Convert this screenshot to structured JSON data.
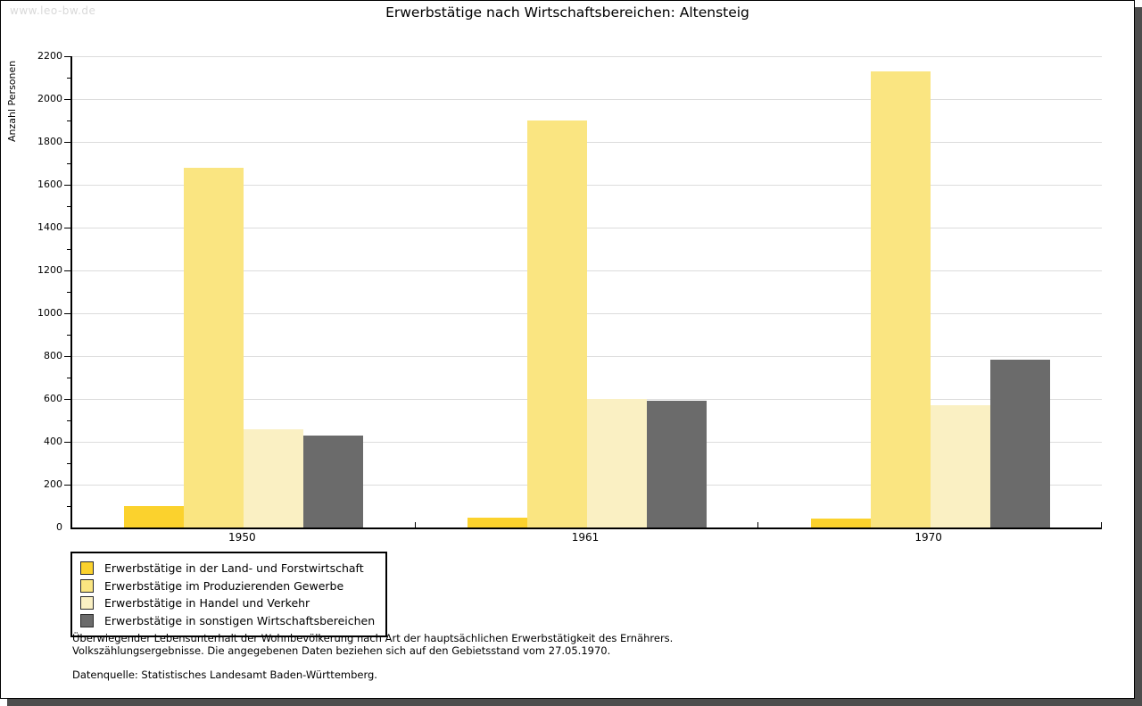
{
  "watermark": "www.leo-bw.de",
  "chart_data": {
    "type": "bar",
    "title": "Erwerbstätige nach Wirtschaftsbereichen: Altensteig",
    "ylabel": "Anzahl Personen",
    "xlabel": "",
    "ylim": [
      0,
      2200
    ],
    "ytick_step": 200,
    "ytick_minor_step": 100,
    "grid": true,
    "legend_position": "bottom-left",
    "categories": [
      "1950",
      "1961",
      "1970"
    ],
    "series": [
      {
        "name": "Erwerbstätige in der Land- und Forstwirtschaft",
        "color": "#fbd22d",
        "values": [
          100,
          45,
          40
        ]
      },
      {
        "name": "Erwerbstätige im Produzierenden Gewerbe",
        "color": "#fae581",
        "values": [
          1680,
          1900,
          2130
        ]
      },
      {
        "name": "Erwerbstätige in Handel und Verkehr",
        "color": "#faf0c3",
        "values": [
          460,
          600,
          570
        ]
      },
      {
        "name": "Erwerbstätige in sonstigen Wirtschaftsbereichen",
        "color": "#6b6b6b",
        "values": [
          430,
          590,
          785
        ]
      }
    ]
  },
  "footnotes": {
    "line1": "Überwiegender Lebensunterhalt der Wohnbevölkerung nach Art der hauptsächlichen Erwerbstätigkeit des Ernährers.",
    "line2": "Volkszählungsergebnisse. Die angegebenen Daten beziehen sich auf den Gebietsstand vom 27.05.1970.",
    "source": "Datenquelle: Statistisches Landesamt Baden-Württemberg."
  }
}
